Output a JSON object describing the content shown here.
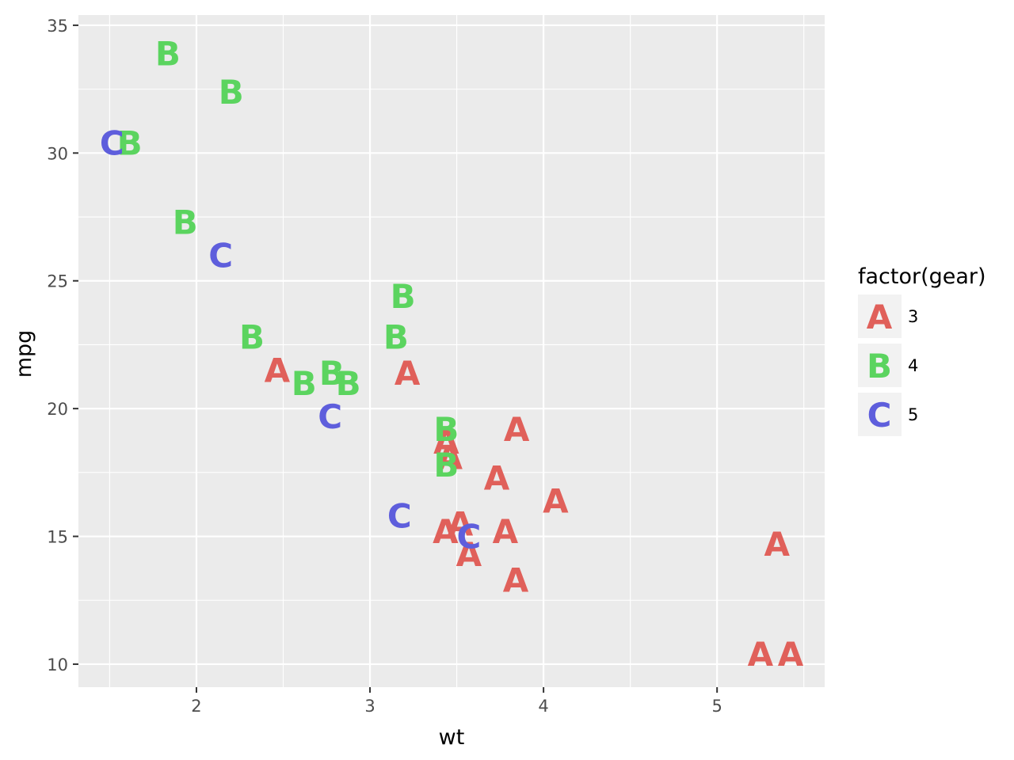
{
  "chart_data": {
    "type": "scatter",
    "title": "",
    "xlabel": "wt",
    "ylabel": "mpg",
    "xlim": [
      1.32,
      5.62
    ],
    "ylim": [
      9.1,
      35.4
    ],
    "x_ticks": [
      2,
      3,
      4,
      5
    ],
    "x_tick_labels": [
      "2",
      "3",
      "4",
      "5"
    ],
    "y_ticks": [
      10,
      15,
      20,
      25,
      30,
      35
    ],
    "y_tick_labels": [
      "10",
      "15",
      "20",
      "25",
      "30",
      "35"
    ],
    "grid": true,
    "legend": {
      "title": "factor(gear)",
      "position": "right",
      "entries": [
        {
          "letter": "A",
          "label": "3",
          "color": "#e0605a"
        },
        {
          "letter": "B",
          "label": "4",
          "color": "#5bd45f"
        },
        {
          "letter": "C",
          "label": "5",
          "color": "#5e5edc"
        }
      ]
    },
    "series": [
      {
        "name": "3",
        "letter": "A",
        "color": "#e0605a",
        "points": [
          [
            2.465,
            21.5
          ],
          [
            3.215,
            21.4
          ],
          [
            3.44,
            18.7
          ],
          [
            3.46,
            18.1
          ],
          [
            3.57,
            14.3
          ],
          [
            3.73,
            17.3
          ],
          [
            3.78,
            15.2
          ],
          [
            5.25,
            10.4
          ],
          [
            5.424,
            10.4
          ],
          [
            5.345,
            14.7
          ],
          [
            3.52,
            15.5
          ],
          [
            3.435,
            15.2
          ],
          [
            3.84,
            13.3
          ],
          [
            3.845,
            19.2
          ],
          [
            4.07,
            16.4
          ]
        ]
      },
      {
        "name": "4",
        "letter": "B",
        "color": "#5bd45f",
        "points": [
          [
            2.62,
            21.0
          ],
          [
            2.875,
            21.0
          ],
          [
            2.32,
            22.8
          ],
          [
            3.19,
            24.4
          ],
          [
            3.15,
            22.8
          ],
          [
            3.44,
            19.2
          ],
          [
            3.44,
            17.8
          ],
          [
            2.2,
            32.4
          ],
          [
            1.615,
            30.4
          ],
          [
            1.835,
            33.9
          ],
          [
            1.935,
            27.3
          ],
          [
            2.78,
            21.4
          ]
        ]
      },
      {
        "name": "5",
        "letter": "C",
        "color": "#5e5edc",
        "points": [
          [
            2.14,
            26.0
          ],
          [
            1.513,
            30.4
          ],
          [
            3.17,
            15.8
          ],
          [
            2.77,
            19.7
          ],
          [
            3.57,
            15.0
          ]
        ]
      }
    ]
  }
}
